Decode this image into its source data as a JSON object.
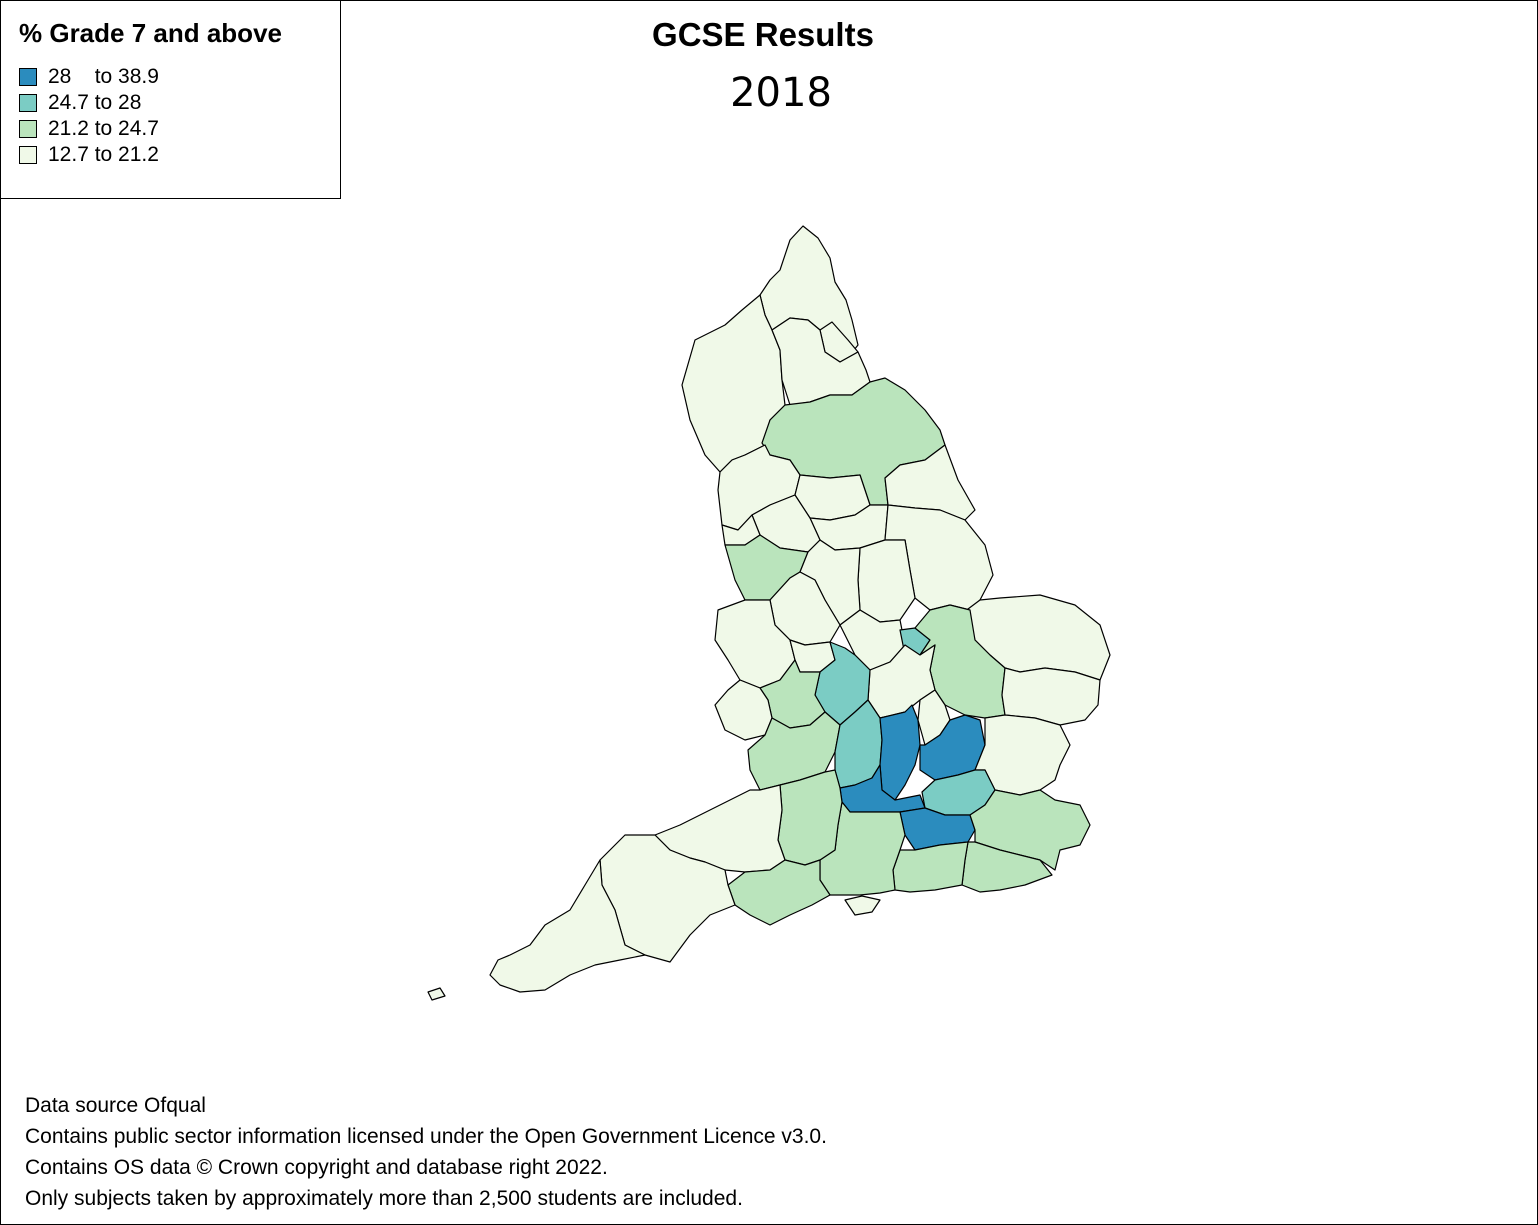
{
  "title": "GCSE Results",
  "subtitle": "2018",
  "legend": {
    "title": "% Grade 7 and above",
    "items": [
      {
        "label": "28    to 38.9",
        "color": "#2b8cbe"
      },
      {
        "label": "24.7 to 28",
        "color": "#7bccc4"
      },
      {
        "label": "21.2 to 24.7",
        "color": "#bae4bc"
      },
      {
        "label": "12.7 to 21.2",
        "color": "#f0f9e8"
      }
    ]
  },
  "footer": {
    "line1": "Data source Ofqual",
    "line2": "Contains public sector information licensed under the Open Government Licence v3.0.",
    "line3": "Contains OS data © Crown copyright and database right 2022.",
    "line4": "Only subjects taken by approximately more than 2,500 students are included."
  }
}
